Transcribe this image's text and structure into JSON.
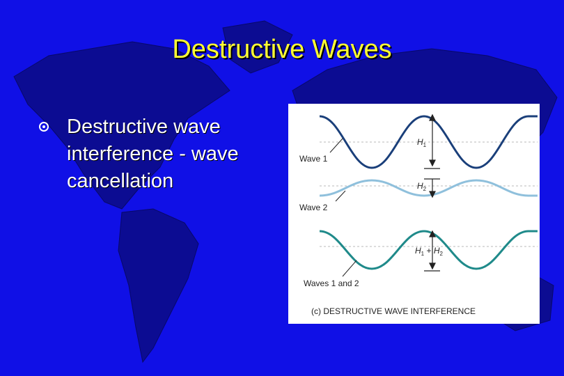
{
  "slide": {
    "title": "Destructive Waves",
    "bullet": {
      "line1": "Destructive wave",
      "line2": "interference - wave",
      "line3": "cancellation"
    }
  },
  "figure": {
    "wave1_label": "Wave 1",
    "wave2_label": "Wave 2",
    "combined_label": "Waves 1 and 2",
    "h1_label": "H",
    "h1_sub": "1",
    "h2_label": "H",
    "h2_sub": "2",
    "h_sum_label_a": "H",
    "h_sum_sub_a": "1",
    "h_sum_plus": " + ",
    "h_sum_label_b": "H",
    "h_sum_sub_b": "2",
    "caption": "(c) DESTRUCTIVE WAVE INTERFERENCE",
    "colors": {
      "wave1": "#1a3f7a",
      "wave2": "#8fc0dc",
      "combined": "#1f8a8a",
      "background": "#1010e6",
      "map": "#0b0b8a",
      "title": "#ffff33"
    }
  }
}
